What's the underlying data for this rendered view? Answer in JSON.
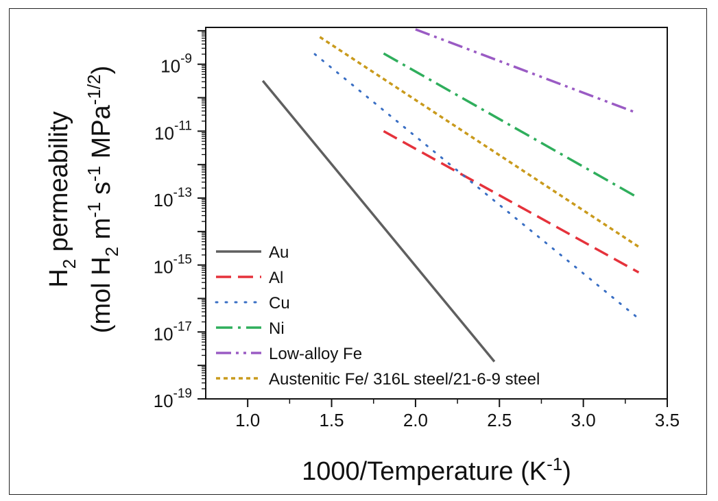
{
  "chart_data": {
    "type": "line",
    "title": "",
    "xlabel": "1000/Temperature (K",
    "xlabel_sup": "-1",
    "xlabel_end": ")",
    "ylabel_line1_pre": "H",
    "ylabel_line1_sub": "2",
    "ylabel_line1_post": " permeability",
    "ylabel_line2": {
      "p1": "(mol H",
      "s1": "2",
      "p2": " m",
      "e1": "-1",
      "p3": " s",
      "e2": "-1",
      "p4": " MPa",
      "e3": "-1/2",
      "p5": ")"
    },
    "xlim": [
      0.75,
      3.5
    ],
    "ylim_log10": [
      -19,
      -7.9
    ],
    "yscale": "log",
    "x_ticks": [
      {
        "value": 1.0,
        "label": "1.0"
      },
      {
        "value": 1.5,
        "label": "1.5"
      },
      {
        "value": 2.0,
        "label": "2.0"
      },
      {
        "value": 2.5,
        "label": "2.5"
      },
      {
        "value": 3.0,
        "label": "3.0"
      },
      {
        "value": 3.5,
        "label": "3.5"
      }
    ],
    "y_ticks": [
      {
        "exp": -19,
        "base": "10",
        "sup": "-19"
      },
      {
        "exp": -17,
        "base": "10",
        "sup": "-17"
      },
      {
        "exp": -15,
        "base": "10",
        "sup": "-15"
      },
      {
        "exp": -13,
        "base": "10",
        "sup": "-13"
      },
      {
        "exp": -11,
        "base": "10",
        "sup": "-11"
      },
      {
        "exp": -9,
        "base": "10",
        "sup": "-9"
      }
    ],
    "grid": false,
    "legend_position": "bottom-left",
    "series": [
      {
        "name": "Au",
        "color": "#5f5f5f",
        "style": "solid",
        "x": [
          1.09,
          2.47
        ],
        "y": [
          3.2e-10,
          1.3e-18
        ]
      },
      {
        "name": "Al",
        "color": "#e5323b",
        "style": "dash",
        "x": [
          1.81,
          3.33
        ],
        "y": [
          1e-11,
          6e-16
        ]
      },
      {
        "name": "Cu",
        "color": "#3a6fc4",
        "style": "dot",
        "x": [
          1.4,
          3.33
        ],
        "y": [
          2e-09,
          2.5e-17
        ]
      },
      {
        "name": "Ni",
        "color": "#2fae5c",
        "style": "dashdot",
        "x": [
          1.81,
          3.33
        ],
        "y": [
          2.1e-09,
          1e-13
        ]
      },
      {
        "name": "Low-alloy Fe",
        "color": "#9a5bc4",
        "style": "dashdotdot",
        "x": [
          2.0,
          3.3
        ],
        "y": [
          1.1e-08,
          3.8e-11
        ]
      },
      {
        "name": "Austenitic Fe/ 316L steel/21-6-9 steel",
        "color": "#c99a1c",
        "style": "shortdash",
        "x": [
          1.43,
          3.33
        ],
        "y": [
          6.5e-09,
          3.5e-15
        ]
      }
    ]
  }
}
